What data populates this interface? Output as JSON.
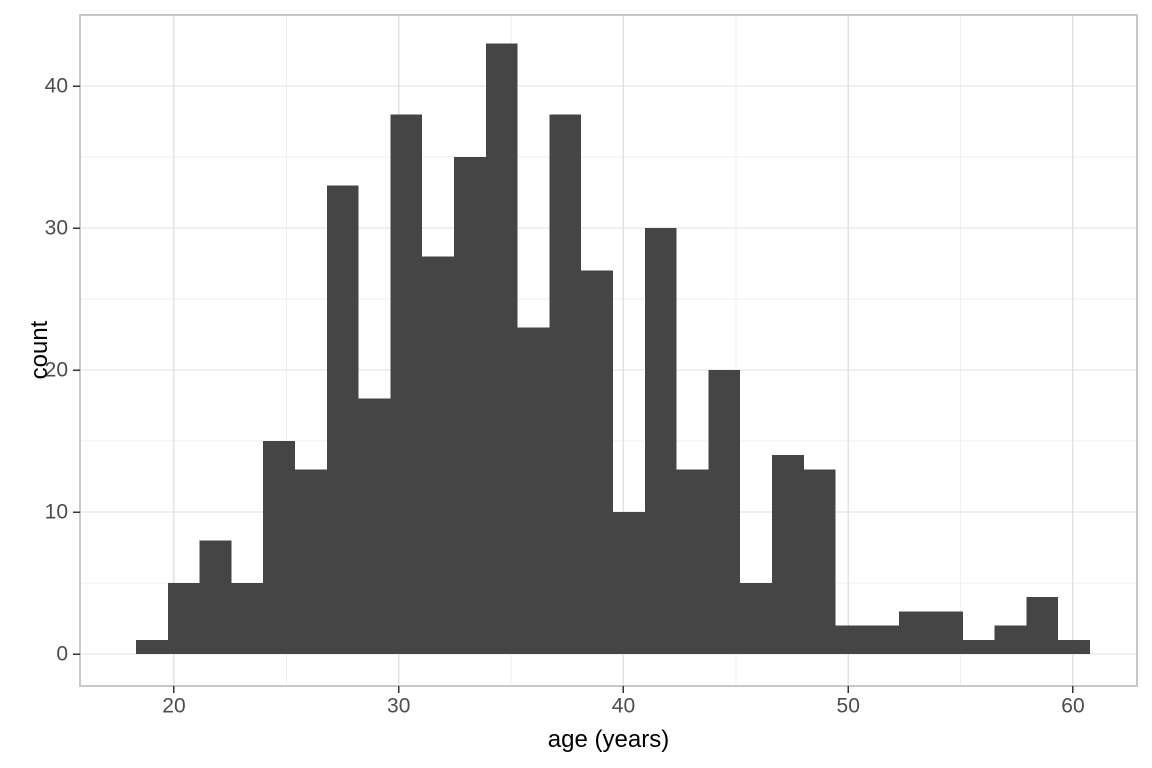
{
  "chart_data": {
    "type": "bar",
    "subtype": "histogram",
    "title": "",
    "xlabel": "age (years)",
    "ylabel": "count",
    "bin_start": 18.31,
    "bin_width": 1.415,
    "counts": [
      1,
      5,
      8,
      5,
      15,
      13,
      33,
      18,
      38,
      28,
      35,
      43,
      23,
      38,
      27,
      10,
      30,
      13,
      20,
      5,
      14,
      13,
      2,
      2,
      3,
      3,
      1,
      2,
      4,
      1
    ],
    "x_ticks": [
      20,
      30,
      40,
      50,
      60
    ],
    "x_tick_labels": [
      "20",
      "30",
      "40",
      "50",
      "60"
    ],
    "x_minor_ticks": [
      25,
      35,
      45,
      55
    ],
    "y_ticks": [
      0,
      10,
      20,
      30,
      40
    ],
    "y_tick_labels": [
      "0",
      "10",
      "20",
      "30",
      "40"
    ],
    "y_minor_ticks": [
      5,
      15,
      25,
      35
    ],
    "xlim": [
      15.82,
      62.85
    ],
    "ylim": [
      -2.25,
      45.0
    ],
    "grid": true,
    "legend_position": "none",
    "colors": {
      "bar_fill": "#454545",
      "grid_major": "#e2e2e2",
      "grid_minor": "#efefef",
      "panel_border": "#c8c8c8",
      "tick_mark": "#333333",
      "tick_label": "#4d4d4d",
      "axis_title": "#000000",
      "panel_background": "#ffffff",
      "figure_background": "#ffffff"
    }
  }
}
